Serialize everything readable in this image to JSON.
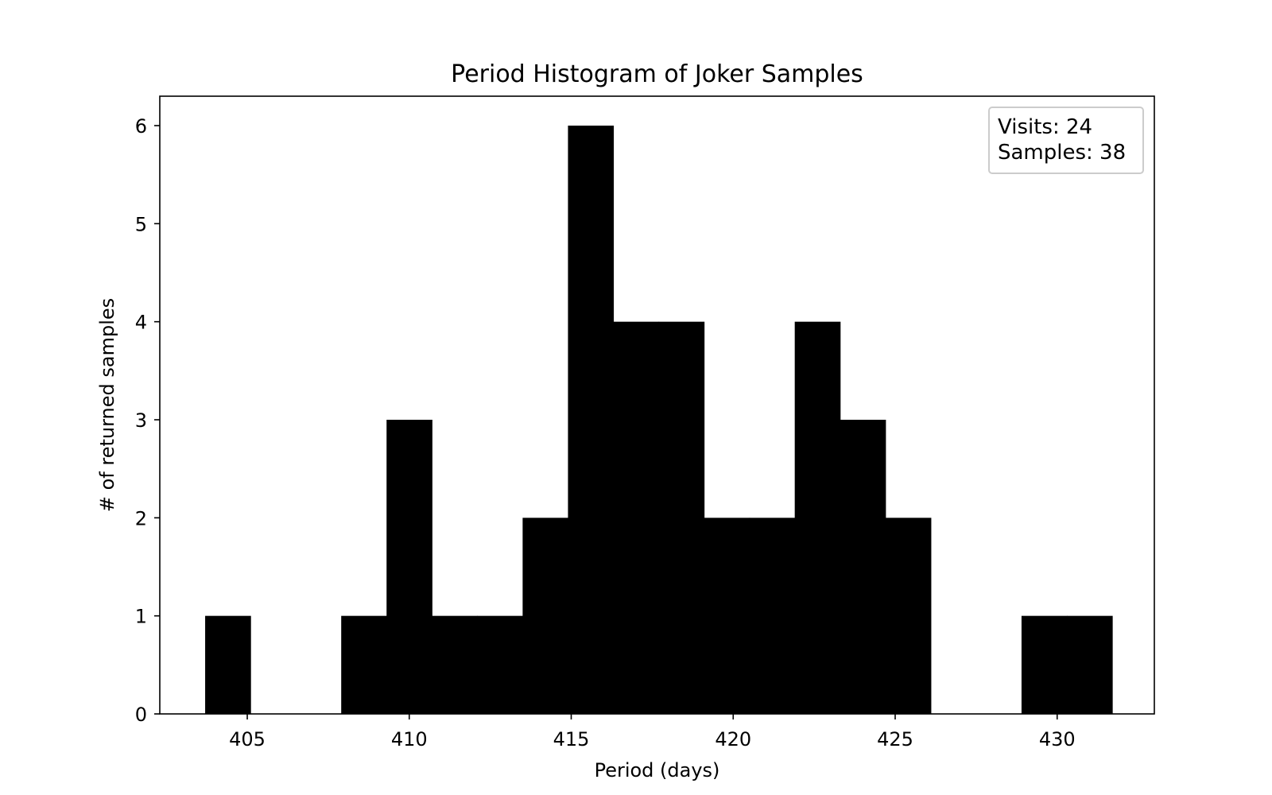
{
  "chart_data": {
    "type": "bar",
    "title": "Period Histogram of Joker Samples",
    "xlabel": "Period (days)",
    "ylabel": "# of returned samples",
    "xlim": [
      402.3,
      433.0
    ],
    "ylim": [
      0,
      6.3
    ],
    "xticks": [
      405,
      410,
      415,
      420,
      425,
      430
    ],
    "yticks": [
      0,
      1,
      2,
      3,
      4,
      5,
      6
    ],
    "grid": false,
    "bar_color": "#000000",
    "bins": [
      {
        "x0": 403.7,
        "x1": 405.1,
        "count": 1
      },
      {
        "x0": 405.1,
        "x1": 406.5,
        "count": 0
      },
      {
        "x0": 406.5,
        "x1": 407.9,
        "count": 0
      },
      {
        "x0": 407.9,
        "x1": 409.3,
        "count": 1
      },
      {
        "x0": 409.3,
        "x1": 410.7,
        "count": 3
      },
      {
        "x0": 410.7,
        "x1": 412.1,
        "count": 1
      },
      {
        "x0": 412.1,
        "x1": 413.5,
        "count": 1
      },
      {
        "x0": 413.5,
        "x1": 414.9,
        "count": 2
      },
      {
        "x0": 414.9,
        "x1": 416.3,
        "count": 6
      },
      {
        "x0": 416.3,
        "x1": 417.7,
        "count": 4
      },
      {
        "x0": 417.7,
        "x1": 419.1,
        "count": 4
      },
      {
        "x0": 419.1,
        "x1": 420.5,
        "count": 2
      },
      {
        "x0": 420.5,
        "x1": 421.9,
        "count": 2
      },
      {
        "x0": 421.9,
        "x1": 423.3,
        "count": 4
      },
      {
        "x0": 423.3,
        "x1": 424.7,
        "count": 3
      },
      {
        "x0": 424.7,
        "x1": 426.1,
        "count": 2
      },
      {
        "x0": 426.1,
        "x1": 427.5,
        "count": 0
      },
      {
        "x0": 427.5,
        "x1": 428.9,
        "count": 0
      },
      {
        "x0": 428.9,
        "x1": 430.3,
        "count": 1
      },
      {
        "x0": 430.3,
        "x1": 431.7,
        "count": 1
      }
    ],
    "legend": {
      "position": "upper right",
      "lines": [
        "Visits: 24",
        "Samples: 38"
      ]
    }
  }
}
